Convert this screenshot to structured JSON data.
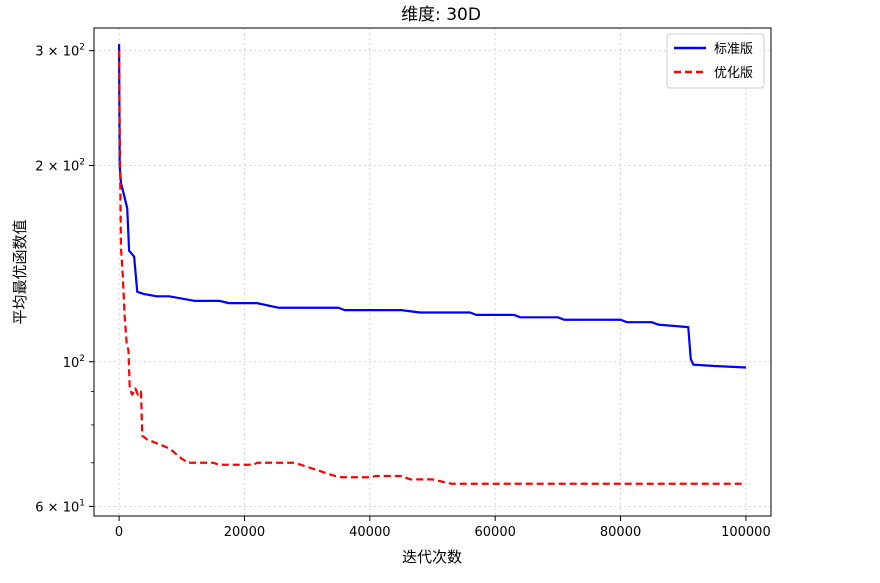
{
  "chart_data": {
    "type": "line",
    "title": "维度: 30D",
    "xlabel": "迭代次数",
    "ylabel": "平均最优函数值",
    "xlim": [
      -4000,
      104000
    ],
    "ylim": [
      58,
      325
    ],
    "yscale": "log",
    "grid": true,
    "legend_position": "top-right",
    "x_ticks": [
      {
        "value": 0,
        "label": "0"
      },
      {
        "value": 20000,
        "label": "20000"
      },
      {
        "value": 40000,
        "label": "40000"
      },
      {
        "value": 60000,
        "label": "60000"
      },
      {
        "value": 80000,
        "label": "80000"
      },
      {
        "value": 100000,
        "label": "100000"
      }
    ],
    "y_ticks": [
      {
        "value": 60,
        "base": "6 × 10",
        "exp": "1"
      },
      {
        "value": 100,
        "base": "10",
        "exp": "2"
      },
      {
        "value": 200,
        "base": "2 × 10",
        "exp": "2"
      },
      {
        "value": 300,
        "base": "3 × 10",
        "exp": "2"
      }
    ],
    "y_minor_ticks": [
      70,
      80,
      90
    ],
    "series": [
      {
        "name": "标准版",
        "color": "#0000ff",
        "dash": "solid",
        "points": [
          [
            0,
            307
          ],
          [
            100,
            200
          ],
          [
            300,
            188
          ],
          [
            800,
            180
          ],
          [
            1300,
            172
          ],
          [
            1600,
            148
          ],
          [
            2400,
            145
          ],
          [
            2900,
            128
          ],
          [
            4000,
            127
          ],
          [
            6000,
            126
          ],
          [
            8000,
            126
          ],
          [
            10000,
            125
          ],
          [
            12000,
            124
          ],
          [
            16000,
            124
          ],
          [
            17500,
            123
          ],
          [
            22000,
            123
          ],
          [
            25500,
            121
          ],
          [
            35000,
            121
          ],
          [
            36000,
            120
          ],
          [
            45000,
            120
          ],
          [
            48000,
            119
          ],
          [
            56000,
            119
          ],
          [
            57000,
            118
          ],
          [
            63000,
            118
          ],
          [
            64000,
            117
          ],
          [
            70000,
            117
          ],
          [
            71000,
            116
          ],
          [
            80000,
            116
          ],
          [
            81000,
            115
          ],
          [
            85000,
            115
          ],
          [
            86000,
            114
          ],
          [
            90800,
            113
          ],
          [
            91200,
            101
          ],
          [
            91600,
            99
          ],
          [
            95000,
            98.5
          ],
          [
            100000,
            98
          ]
        ]
      },
      {
        "name": "优化版",
        "color": "#ff0000",
        "dash": "dashed",
        "points": [
          [
            0,
            300
          ],
          [
            100,
            230
          ],
          [
            300,
            150
          ],
          [
            600,
            135
          ],
          [
            900,
            117
          ],
          [
            1200,
            107
          ],
          [
            1500,
            104
          ],
          [
            1700,
            91
          ],
          [
            2100,
            89
          ],
          [
            2600,
            91
          ],
          [
            3000,
            89
          ],
          [
            3500,
            90
          ],
          [
            3700,
            77
          ],
          [
            4500,
            76
          ],
          [
            6000,
            75
          ],
          [
            7500,
            74
          ],
          [
            8500,
            73
          ],
          [
            10000,
            71
          ],
          [
            11000,
            70
          ],
          [
            15000,
            70
          ],
          [
            16000,
            69.5
          ],
          [
            21500,
            69.5
          ],
          [
            22000,
            70
          ],
          [
            28000,
            70
          ],
          [
            30000,
            69
          ],
          [
            32000,
            68
          ],
          [
            34000,
            67
          ],
          [
            35500,
            66.5
          ],
          [
            40000,
            66.5
          ],
          [
            41000,
            66.8
          ],
          [
            45000,
            66.8
          ],
          [
            46500,
            66
          ],
          [
            50000,
            66
          ],
          [
            53000,
            65
          ],
          [
            60000,
            65
          ],
          [
            100000,
            65
          ]
        ]
      }
    ]
  }
}
